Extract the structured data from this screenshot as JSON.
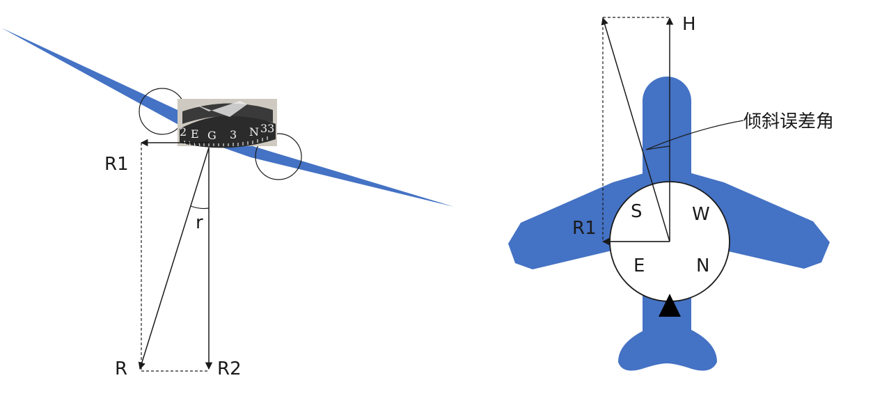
{
  "colors": {
    "wing": "#4472c4",
    "line": "#1a1a1a",
    "compass_band": "#2b2b2b"
  },
  "left_figure": {
    "labels": {
      "r1": "R1",
      "r": "r",
      "r_vector": "R",
      "r2": "R2"
    },
    "compass_scale": [
      "2",
      "E",
      "G",
      "3",
      "N",
      "33"
    ]
  },
  "right_figure": {
    "labels": {
      "h": "H",
      "r1": "R1",
      "tilt_error_angle": "倾斜误差角"
    },
    "compass_letters": {
      "s": "S",
      "w": "W",
      "e": "E",
      "n": "N"
    },
    "lubber_icon": "triangle-up-icon"
  }
}
